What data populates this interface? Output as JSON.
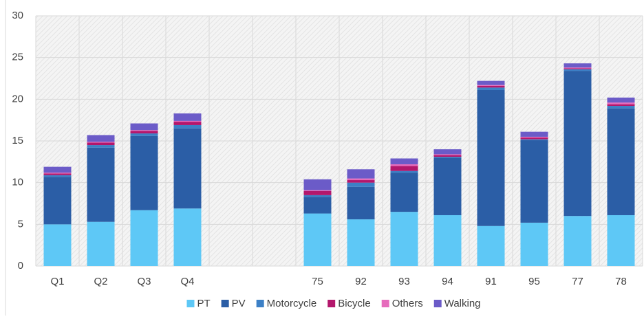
{
  "chart_data": {
    "type": "stacked_bar",
    "categories": [
      "Q1",
      "Q2",
      "Q3",
      "Q4",
      null,
      null,
      "75",
      "92",
      "93",
      "94",
      "91",
      "95",
      "77",
      "78"
    ],
    "series": [
      {
        "name": "PT",
        "color": "#5ec8f6",
        "values": [
          5.0,
          5.3,
          6.7,
          6.9,
          null,
          null,
          6.3,
          5.6,
          6.5,
          6.1,
          4.8,
          5.2,
          6.0,
          6.1
        ]
      },
      {
        "name": "PV",
        "color": "#2b5ea6",
        "values": [
          5.7,
          8.9,
          8.9,
          9.6,
          null,
          null,
          2.0,
          3.9,
          4.7,
          6.9,
          16.3,
          9.9,
          17.4,
          12.8
        ]
      },
      {
        "name": "Motorcycle",
        "color": "#3c80c6",
        "values": [
          0.2,
          0.3,
          0.3,
          0.4,
          null,
          null,
          0.2,
          0.5,
          0.2,
          0.1,
          0.3,
          0.1,
          0.2,
          0.3
        ]
      },
      {
        "name": "Bicycle",
        "color": "#b3176c",
        "values": [
          0.2,
          0.3,
          0.3,
          0.4,
          null,
          null,
          0.5,
          0.3,
          0.6,
          0.2,
          0.2,
          0.2,
          0.1,
          0.2
        ]
      },
      {
        "name": "Others",
        "color": "#e66cbc",
        "values": [
          0.1,
          0.1,
          0.1,
          0.1,
          null,
          null,
          0.1,
          0.2,
          0.2,
          0.1,
          0.1,
          0.1,
          0.1,
          0.2
        ]
      },
      {
        "name": "Walking",
        "color": "#6b5bc8",
        "values": [
          0.7,
          0.8,
          0.8,
          0.9,
          null,
          null,
          1.3,
          1.1,
          0.7,
          0.6,
          0.5,
          0.6,
          0.5,
          0.6
        ]
      }
    ],
    "ylim": [
      0,
      30
    ],
    "yticks": [
      0,
      5,
      10,
      15,
      20,
      25,
      30
    ],
    "grid": true,
    "legend": "bottom"
  }
}
